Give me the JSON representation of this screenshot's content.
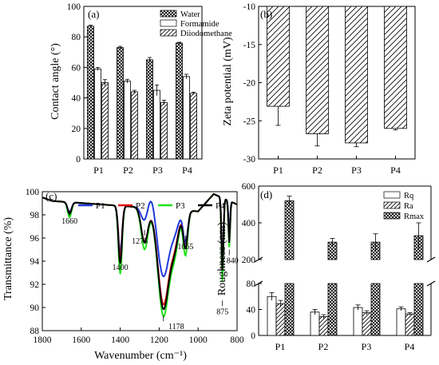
{
  "chart_data": [
    {
      "panel": "(a)",
      "type": "bar",
      "ylabel": "Contact angle (°)",
      "ylim": [
        0,
        100
      ],
      "yticks": [
        "0",
        "20",
        "40",
        "60",
        "80",
        "100"
      ],
      "categories": [
        "P1",
        "P2",
        "P3",
        "P4"
      ],
      "series": [
        {
          "name": "Water",
          "values": [
            87,
            73,
            65,
            76
          ],
          "errors": [
            0.7,
            0.8,
            1.5,
            0.5
          ],
          "pattern": "crosshatch"
        },
        {
          "name": "Formamide",
          "values": [
            59,
            51,
            45,
            54
          ],
          "errors": [
            1.0,
            1.2,
            3.5,
            1.5
          ],
          "pattern": "plain"
        },
        {
          "name": "Diiodomethane",
          "values": [
            50,
            44,
            37,
            43
          ],
          "errors": [
            2.0,
            1.0,
            1.5,
            0.8
          ],
          "pattern": "diagonal"
        }
      ],
      "legend": "top-right"
    },
    {
      "panel": "(b)",
      "type": "bar",
      "ylabel": "Zeta potential (mV)",
      "ylim": [
        -30,
        -10
      ],
      "yticks": [
        "-10",
        "-15",
        "-20",
        "-25",
        "-30"
      ],
      "categories": [
        "P1",
        "P2",
        "P3",
        "P4"
      ],
      "series": [
        {
          "values": [
            -23.1,
            -26.7,
            -27.9,
            -26.0
          ],
          "errors": [
            2.5,
            1.6,
            0.5,
            0.2
          ],
          "pattern": "diagonal"
        }
      ]
    },
    {
      "panel": "(c)",
      "type": "line",
      "xlabel": "Wavenumber (cm⁻¹)",
      "ylabel": "Transmittance (%)",
      "xlim": [
        1800,
        800
      ],
      "ylim": [
        88,
        100
      ],
      "xticks": [
        "1800",
        "1600",
        "1400",
        "1200",
        "1000",
        "800"
      ],
      "yticks": [
        "88",
        "90",
        "92",
        "94",
        "96",
        "98",
        "100"
      ],
      "series": [
        {
          "name": "P1",
          "color": "#1f3bdb"
        },
        {
          "name": "P2",
          "color": "#e01010"
        },
        {
          "name": "P3",
          "color": "#22e01a"
        },
        {
          "name": "P4",
          "color": "#000000"
        }
      ],
      "annotations": [
        "1660",
        "1400",
        "1275",
        "1178",
        "1065",
        "875",
        "840"
      ],
      "legend": "top"
    },
    {
      "panel": "(d)",
      "type": "bar",
      "ylabel": "Roughness (nm)",
      "categories": [
        "P1",
        "P2",
        "P3",
        "P4"
      ],
      "yticks_lower": [
        "0",
        "40",
        "80"
      ],
      "yticks_upper": [
        "200",
        "400",
        "600"
      ],
      "axis_break": [
        80,
        200
      ],
      "series": [
        {
          "name": "Rq",
          "values": [
            60,
            36,
            43,
            41
          ],
          "errors": [
            6,
            4,
            4,
            3
          ],
          "pattern": "plain"
        },
        {
          "name": "Ra",
          "values": [
            49,
            29,
            35,
            33
          ],
          "errors": [
            5,
            3,
            3,
            2
          ],
          "pattern": "diagonal"
        },
        {
          "name": "Rmax",
          "values": [
            520,
            295,
            295,
            330
          ],
          "errors": [
            25,
            20,
            45,
            70
          ],
          "pattern": "crosshatch"
        }
      ],
      "legend": "top-right"
    }
  ]
}
